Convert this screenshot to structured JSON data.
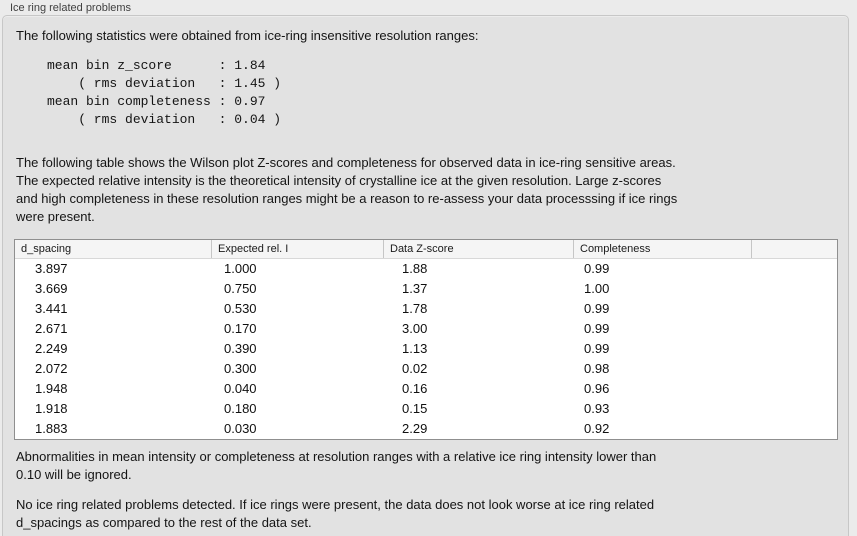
{
  "colors": {
    "outer_background": "#ebebeb",
    "panel_background": "#e2e2e2",
    "panel_border": "#c7c7c7",
    "table_background": "#ffffff",
    "table_border": "#8f8f8f",
    "table_header_background": "#f5f5f5",
    "text": "#141414",
    "label_text": "#3f3f3f"
  },
  "groupbox": {
    "title": "Ice ring related problems"
  },
  "intro": {
    "text": "The following statistics were obtained from ice-ring insensitive resolution ranges:"
  },
  "stats": {
    "mean_bin_z_score": "1.84",
    "z_score_rms_deviation": "1.45",
    "mean_bin_completeness": "0.97",
    "completeness_rms_deviation": "0.04",
    "lines": [
      "mean bin z_score      : 1.84",
      "    ( rms deviation   : 1.45 )",
      "mean bin completeness : 0.97",
      "    ( rms deviation   : 0.04 )"
    ]
  },
  "description": {
    "lines": [
      "The following table shows the Wilson plot Z-scores and completeness for observed data in ice-ring sensitive areas.",
      "The expected relative intensity is the theoretical intensity of crystalline ice at the given resolution. Large z-scores",
      "and high completeness in these resolution ranges might be a reason to re-assess your data processsing if ice rings",
      "were present."
    ]
  },
  "table": {
    "columns": [
      "d_spacing",
      "Expected rel. I",
      "Data Z-score",
      "Completeness",
      ""
    ],
    "rows": [
      [
        "3.897",
        "1.000",
        "1.88",
        "0.99"
      ],
      [
        "3.669",
        "0.750",
        "1.37",
        "1.00"
      ],
      [
        "3.441",
        "0.530",
        "1.78",
        "0.99"
      ],
      [
        "2.671",
        "0.170",
        "3.00",
        "0.99"
      ],
      [
        "2.249",
        "0.390",
        "1.13",
        "0.99"
      ],
      [
        "2.072",
        "0.300",
        "0.02",
        "0.98"
      ],
      [
        "1.948",
        "0.040",
        "0.16",
        "0.96"
      ],
      [
        "1.918",
        "0.180",
        "0.15",
        "0.93"
      ],
      [
        "1.883",
        "0.030",
        "2.29",
        "0.92"
      ]
    ]
  },
  "notes": [
    {
      "lines": [
        "Abnormalities in mean intensity or completeness at resolution ranges with a relative ice ring intensity lower than",
        "0.10 will be ignored."
      ]
    },
    {
      "lines": [
        "No ice ring related problems detected. If ice rings were present, the data does not look worse at ice ring related",
        "d_spacings as compared to the rest of the data set."
      ]
    }
  ]
}
